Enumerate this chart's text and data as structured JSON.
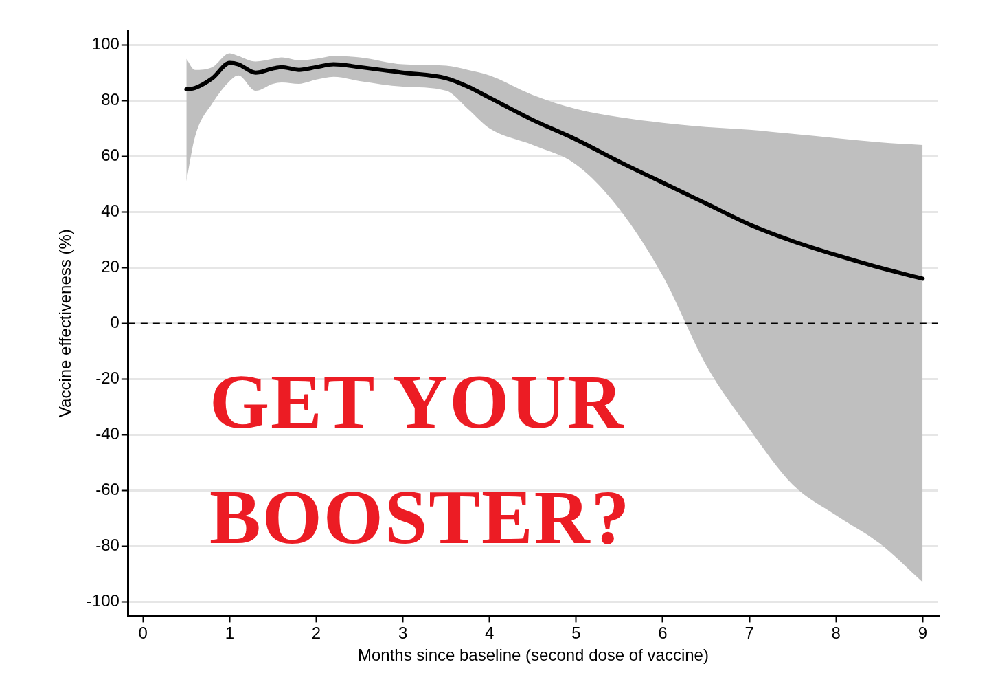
{
  "chart_data": {
    "type": "line",
    "xlabel": "Months since baseline (second dose of vaccine)",
    "ylabel": "Vaccine effectiveness (%)",
    "xlim": [
      -0.17,
      9.18
    ],
    "xticks": [
      0,
      1,
      2,
      3,
      4,
      5,
      6,
      7,
      8,
      9
    ],
    "ylim": [
      -105,
      105
    ],
    "yticks": [
      -100,
      -80,
      -60,
      -40,
      -20,
      0,
      20,
      40,
      60,
      80,
      100
    ],
    "grid": "y",
    "legend": false,
    "marker": "none",
    "line_style": "solid",
    "ref_lines": [
      {
        "axis": "y",
        "value": 0,
        "color": "#000000",
        "line_style": "dashed"
      }
    ],
    "annotations": [
      "GET YOUR BOOSTER?"
    ],
    "series": [
      {
        "color": "#000000",
        "x": [
          0.5,
          0.6,
          0.8,
          1.0,
          1.1,
          1.3,
          1.5,
          1.6,
          1.8,
          2.0,
          2.2,
          2.5,
          3.0,
          3.5,
          3.75,
          4.0,
          4.5,
          5.0,
          5.5,
          6.0,
          6.5,
          7.0,
          7.5,
          8.0,
          8.5,
          9.0
        ],
        "values": [
          84,
          84.5,
          88,
          93.5,
          93,
          90,
          91.5,
          92,
          91,
          92,
          93,
          92,
          90,
          88,
          85,
          81,
          73,
          66,
          58,
          50.5,
          43,
          35.5,
          29.5,
          24.5,
          20,
          16
        ],
        "upper": [
          95,
          91,
          92,
          97,
          96,
          94,
          95,
          95.5,
          94.5,
          95,
          96,
          95.5,
          93,
          92.5,
          91,
          89,
          82,
          77,
          74,
          72,
          70.5,
          69.5,
          68,
          66.5,
          65,
          64
        ],
        "lower": [
          51,
          67,
          79,
          87,
          89,
          83.5,
          86,
          86.5,
          86,
          87.5,
          88.5,
          87,
          85,
          83.5,
          77,
          70,
          64,
          57,
          41,
          17,
          -15,
          -38,
          -58,
          -69,
          -79,
          -93
        ]
      }
    ]
  }
}
